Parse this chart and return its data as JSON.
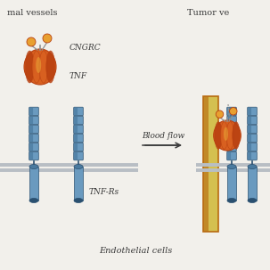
{
  "title_left": "mal vessels",
  "title_right": "Tumor ve",
  "label_cngrc": "CNGRC",
  "label_tnf": "TNF",
  "label_tnfrs": "TNF-Rs",
  "label_bloodflow": "Blood flow",
  "label_endothelial": "Endothelial cells",
  "bg_color": "#f2f0eb",
  "receptor_color": "#6a9abf",
  "receptor_mid": "#4a7a9f",
  "receptor_dark": "#2a5070",
  "membrane_color": "#b8bec4",
  "vessel_orange": "#b86a10",
  "vessel_yellow": "#d4c050",
  "tnf_orange_dark": "#b84010",
  "tnf_orange_mid": "#d86020",
  "tnf_orange_light": "#e89040",
  "tnf_yellow": "#f0c040",
  "dot_color": "#e8a030",
  "stem_color": "#909090",
  "text_color": "#3a3a3a",
  "arrow_color": "#3a3a3a"
}
